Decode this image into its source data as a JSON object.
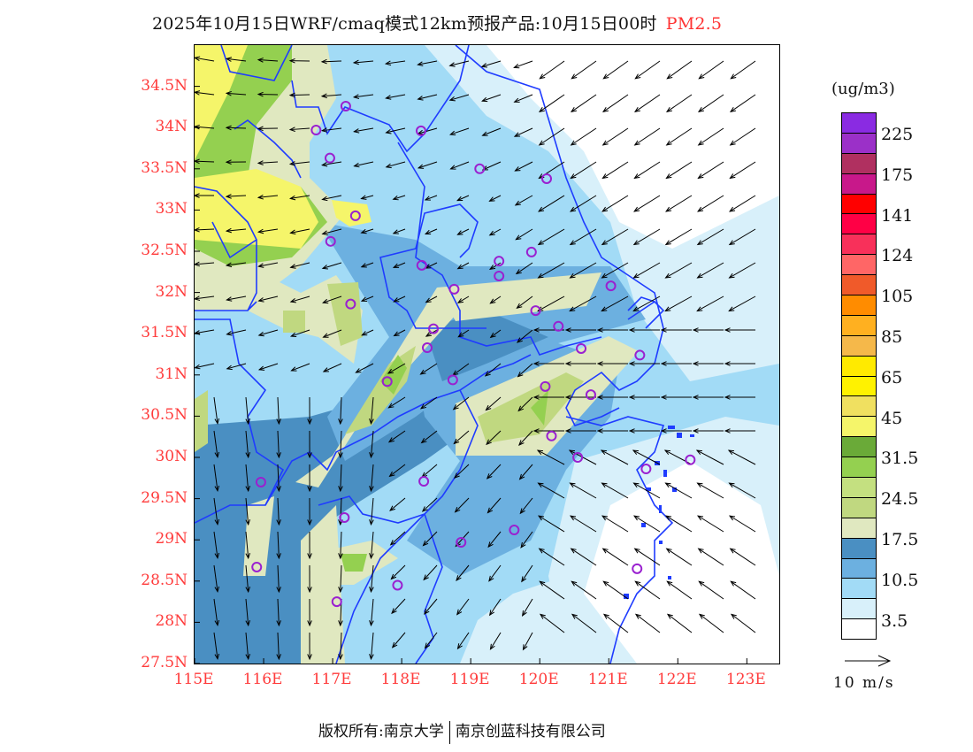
{
  "title": {
    "text": "2025年10月15日WRF/cmaq模式12km预报产品:10月15日00时",
    "variable": "PM2.5"
  },
  "map": {
    "lon_range": [
      115,
      123.47
    ],
    "lat_range": [
      27.5,
      35.0
    ],
    "lon_ticks": [
      {
        "v": 115,
        "label": "115E"
      },
      {
        "v": 116,
        "label": "116E"
      },
      {
        "v": 117,
        "label": "117E"
      },
      {
        "v": 118,
        "label": "118E"
      },
      {
        "v": 119,
        "label": "119E"
      },
      {
        "v": 120,
        "label": "120E"
      },
      {
        "v": 121,
        "label": "121E"
      },
      {
        "v": 122,
        "label": "122E"
      },
      {
        "v": 123,
        "label": "123E"
      }
    ],
    "lat_ticks": [
      {
        "v": 27.5,
        "label": "27.5N"
      },
      {
        "v": 28,
        "label": "28N"
      },
      {
        "v": 28.5,
        "label": "28.5N"
      },
      {
        "v": 29,
        "label": "29N"
      },
      {
        "v": 29.5,
        "label": "29.5N"
      },
      {
        "v": 30,
        "label": "30N"
      },
      {
        "v": 30.5,
        "label": "30.5N"
      },
      {
        "v": 31,
        "label": "31N"
      },
      {
        "v": 31.5,
        "label": "31.5N"
      },
      {
        "v": 32,
        "label": "32N"
      },
      {
        "v": 32.5,
        "label": "32.5N"
      },
      {
        "v": 33,
        "label": "33N"
      },
      {
        "v": 33.5,
        "label": "33.5N"
      },
      {
        "v": 34,
        "label": "34N"
      },
      {
        "v": 34.5,
        "label": "34.5N"
      }
    ],
    "stations": [
      [
        117.19,
        34.26
      ],
      [
        116.76,
        33.97
      ],
      [
        118.28,
        33.96
      ],
      [
        116.96,
        33.63
      ],
      [
        119.13,
        33.5
      ],
      [
        120.1,
        33.38
      ],
      [
        117.33,
        32.93
      ],
      [
        116.97,
        32.62
      ],
      [
        118.29,
        32.33
      ],
      [
        119.41,
        32.38
      ],
      [
        119.88,
        32.49
      ],
      [
        119.41,
        32.2
      ],
      [
        118.76,
        32.04
      ],
      [
        121.03,
        32.08
      ],
      [
        117.26,
        31.86
      ],
      [
        119.94,
        31.78
      ],
      [
        118.46,
        31.56
      ],
      [
        120.27,
        31.59
      ],
      [
        118.37,
        31.33
      ],
      [
        120.6,
        31.32
      ],
      [
        121.45,
        31.24
      ],
      [
        117.79,
        30.92
      ],
      [
        118.74,
        30.94
      ],
      [
        120.08,
        30.86
      ],
      [
        120.74,
        30.76
      ],
      [
        120.17,
        30.26
      ],
      [
        120.55,
        30.0
      ],
      [
        121.54,
        29.86
      ],
      [
        122.18,
        29.97
      ],
      [
        115.96,
        29.7
      ],
      [
        118.32,
        29.71
      ],
      [
        117.17,
        29.27
      ],
      [
        119.63,
        29.12
      ],
      [
        118.86,
        28.97
      ],
      [
        121.41,
        28.65
      ],
      [
        115.9,
        28.67
      ],
      [
        117.94,
        28.45
      ],
      [
        117.06,
        28.25
      ]
    ],
    "colors": {
      "station": "#9a20d0",
      "border": "#1f3cff",
      "tick_label": "#ff3b3b"
    }
  },
  "legend": {
    "unit": "(ug/m3)",
    "swatches": [
      "#8a2be2",
      "#9b30c8",
      "#b03060",
      "#c8188a",
      "#ff0000",
      "#ff0045",
      "#f8305a",
      "#ff6666",
      "#f05a2a",
      "#ff8c00",
      "#ffb020",
      "#f5b84a",
      "#ffea00",
      "#fff200",
      "#f0e060",
      "#f5f56a",
      "#6aaa38",
      "#94d050",
      "#c4e080",
      "#c0d880",
      "#e0e8c0",
      "#4a8fc2",
      "#6cb0e0",
      "#a2dbf6",
      "#d8f0fa",
      "#ffffff"
    ],
    "labels": [
      "225",
      "175",
      "141",
      "124",
      "105",
      "85",
      "65",
      "45",
      "31.5",
      "24.5",
      "17.5",
      "10.5",
      "3.5"
    ],
    "wind_ref": "10 m/s"
  },
  "footer": {
    "left": "版权所有:南京大学",
    "right": "南京创蓝科技有限公司"
  }
}
